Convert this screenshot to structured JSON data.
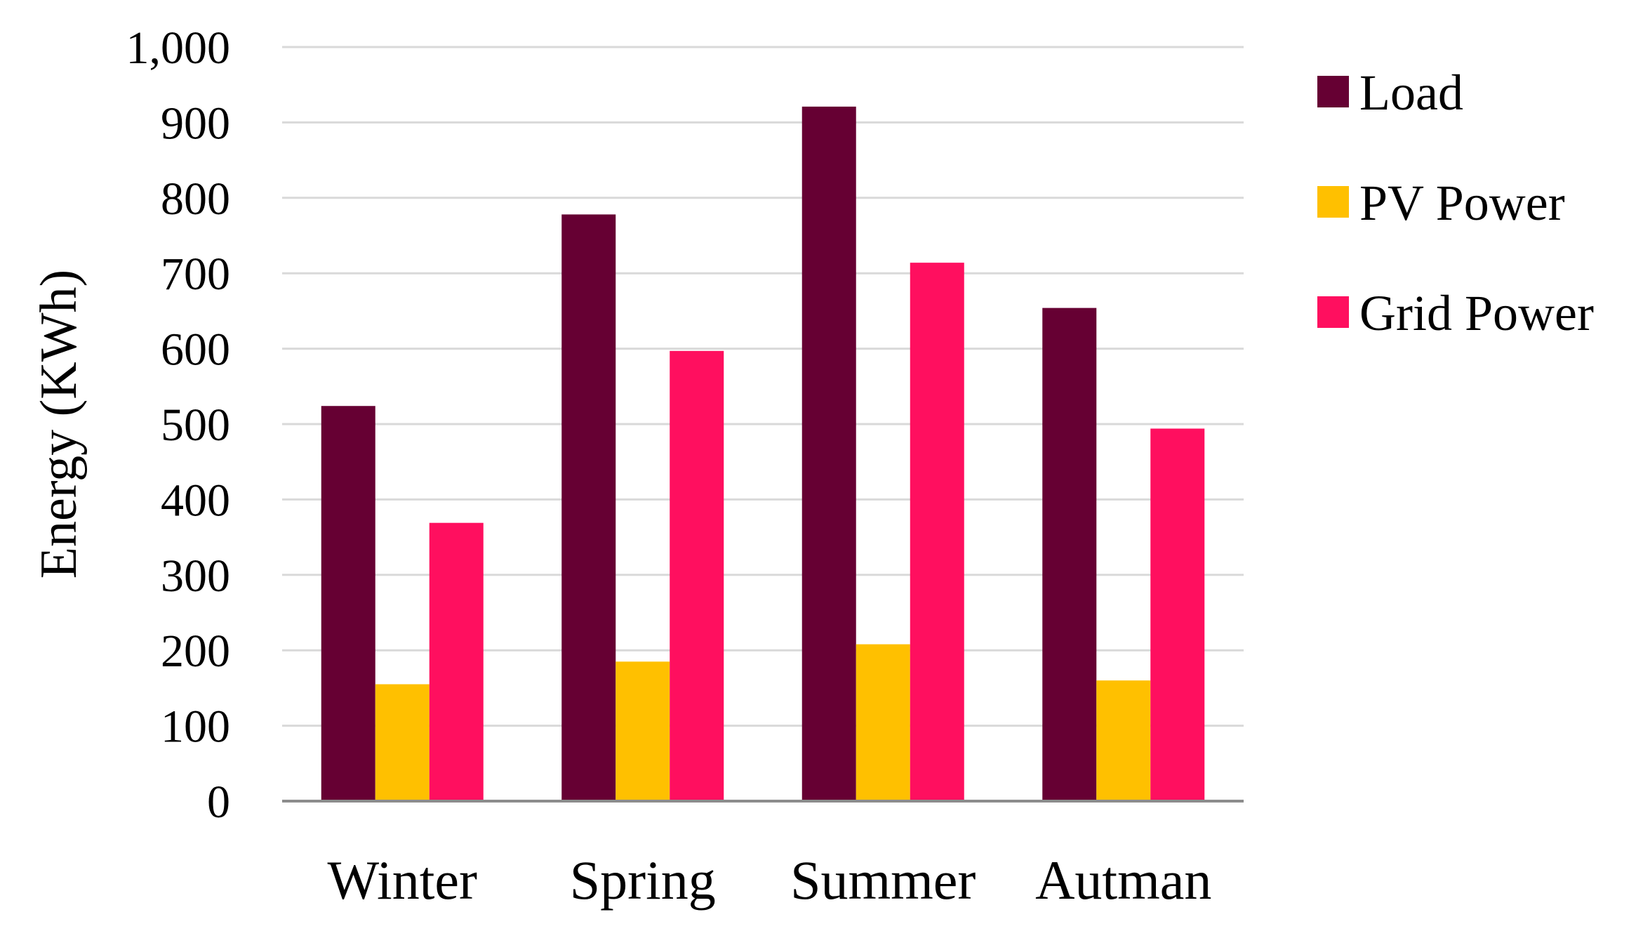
{
  "chart_data": {
    "type": "bar",
    "title": "",
    "xlabel": "",
    "ylabel": "Energy (KWh)",
    "categories": [
      "Winter",
      "Spring",
      "Summer",
      "Autman"
    ],
    "series": [
      {
        "name": "Load",
        "values": [
          524,
          778,
          921,
          654
        ],
        "color": "#660033"
      },
      {
        "name": "PV Power",
        "values": [
          155,
          185,
          208,
          160
        ],
        "color": "#FFC000"
      },
      {
        "name": "Grid Power",
        "values": [
          369,
          597,
          714,
          494
        ],
        "color": "#FF0F5F"
      }
    ],
    "ylim": [
      0,
      1000
    ],
    "yticks": [
      "0",
      "100",
      "200",
      "300",
      "400",
      "500",
      "600",
      "700",
      "800",
      "900",
      "1,000"
    ],
    "grid": true,
    "legend_position": "right"
  }
}
